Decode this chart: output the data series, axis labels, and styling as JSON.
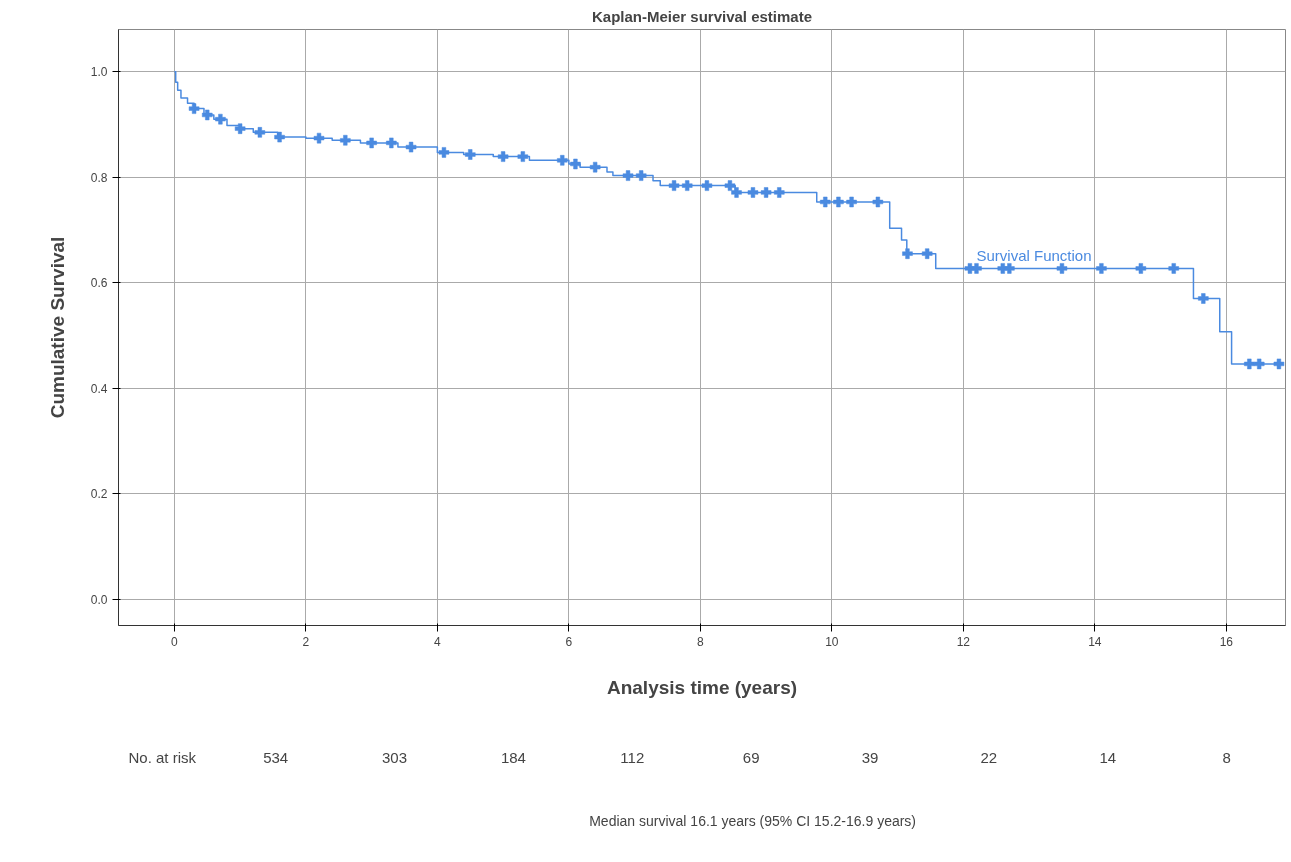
{
  "chart_data": {
    "type": "step",
    "title": "Kaplan-Meier survival estimate",
    "xlabel": "Analysis time (years)",
    "ylabel": "Cumulative Survival",
    "xlim": [
      -0.85,
      16.9
    ],
    "ylim": [
      -0.05,
      1.08
    ],
    "xticks": [
      0,
      2,
      4,
      6,
      8,
      10,
      12,
      14,
      16
    ],
    "yticks": [
      {
        "value": 0,
        "label": "0.0"
      },
      {
        "value": 0.2,
        "label": "0.2"
      },
      {
        "value": 0.4,
        "label": "0.4"
      },
      {
        "value": 0.6,
        "label": "0.6"
      },
      {
        "value": 0.8,
        "label": "0.8"
      },
      {
        "value": 1,
        "label": "1.0"
      }
    ],
    "grid": true,
    "series": [
      {
        "color": "#4a8ae0",
        "x": [
          0,
          0.02,
          0.05,
          0.1,
          0.2,
          0.3,
          0.45,
          0.6,
          0.8,
          1.0,
          1.2,
          1.57,
          2.0,
          2.4,
          2.83,
          3.4,
          4.0,
          4.4,
          4.85,
          5.4,
          6.0,
          6.17,
          6.58,
          6.67,
          7.28,
          7.39,
          8.53,
          9.77,
          10.88,
          11.06,
          11.14,
          11.58,
          15.5,
          15.9,
          16.08,
          16.85
        ],
        "values": [
          1.0,
          0.98,
          0.965,
          0.95,
          0.94,
          0.93,
          0.918,
          0.91,
          0.898,
          0.892,
          0.885,
          0.876,
          0.874,
          0.87,
          0.865,
          0.857,
          0.847,
          0.843,
          0.839,
          0.832,
          0.825,
          0.819,
          0.81,
          0.803,
          0.793,
          0.784,
          0.771,
          0.753,
          0.703,
          0.681,
          0.655,
          0.627,
          0.57,
          0.507,
          0.446,
          0.446
        ]
      },
      {
        "type": "scatter",
        "color": "#4a8ae0",
        "marker": "cross",
        "x": [
          0.3,
          0.5,
          0.7,
          1.0,
          1.3,
          1.6,
          2.2,
          2.6,
          3.0,
          3.3,
          3.6,
          4.1,
          4.5,
          5.0,
          5.3,
          5.9,
          6.1,
          6.4,
          6.9,
          7.1,
          7.6,
          7.8,
          8.1,
          8.45,
          8.55,
          8.8,
          9.0,
          9.2,
          9.9,
          10.1,
          10.3,
          10.7,
          11.15,
          11.45,
          12.1,
          12.2,
          12.6,
          12.7,
          13.5,
          14.1,
          14.7,
          15.2,
          15.65,
          16.35,
          16.5,
          16.8
        ],
        "values": [
          0.93,
          0.918,
          0.91,
          0.892,
          0.885,
          0.876,
          0.874,
          0.87,
          0.865,
          0.865,
          0.857,
          0.847,
          0.843,
          0.839,
          0.839,
          0.832,
          0.825,
          0.819,
          0.803,
          0.803,
          0.784,
          0.784,
          0.784,
          0.784,
          0.771,
          0.771,
          0.771,
          0.771,
          0.753,
          0.753,
          0.753,
          0.753,
          0.655,
          0.655,
          0.627,
          0.627,
          0.627,
          0.627,
          0.627,
          0.627,
          0.627,
          0.627,
          0.57,
          0.446,
          0.446,
          0.446
        ]
      }
    ],
    "annotations": [
      {
        "text": "Survival Function",
        "x": 12.2,
        "y": 0.635
      },
      "No. at risk",
      "534",
      "303",
      "184",
      "112",
      "69",
      "39",
      "22",
      "14",
      "8",
      "Median survival 16.1 years (95% CI 15.2-16.9 years)"
    ]
  }
}
